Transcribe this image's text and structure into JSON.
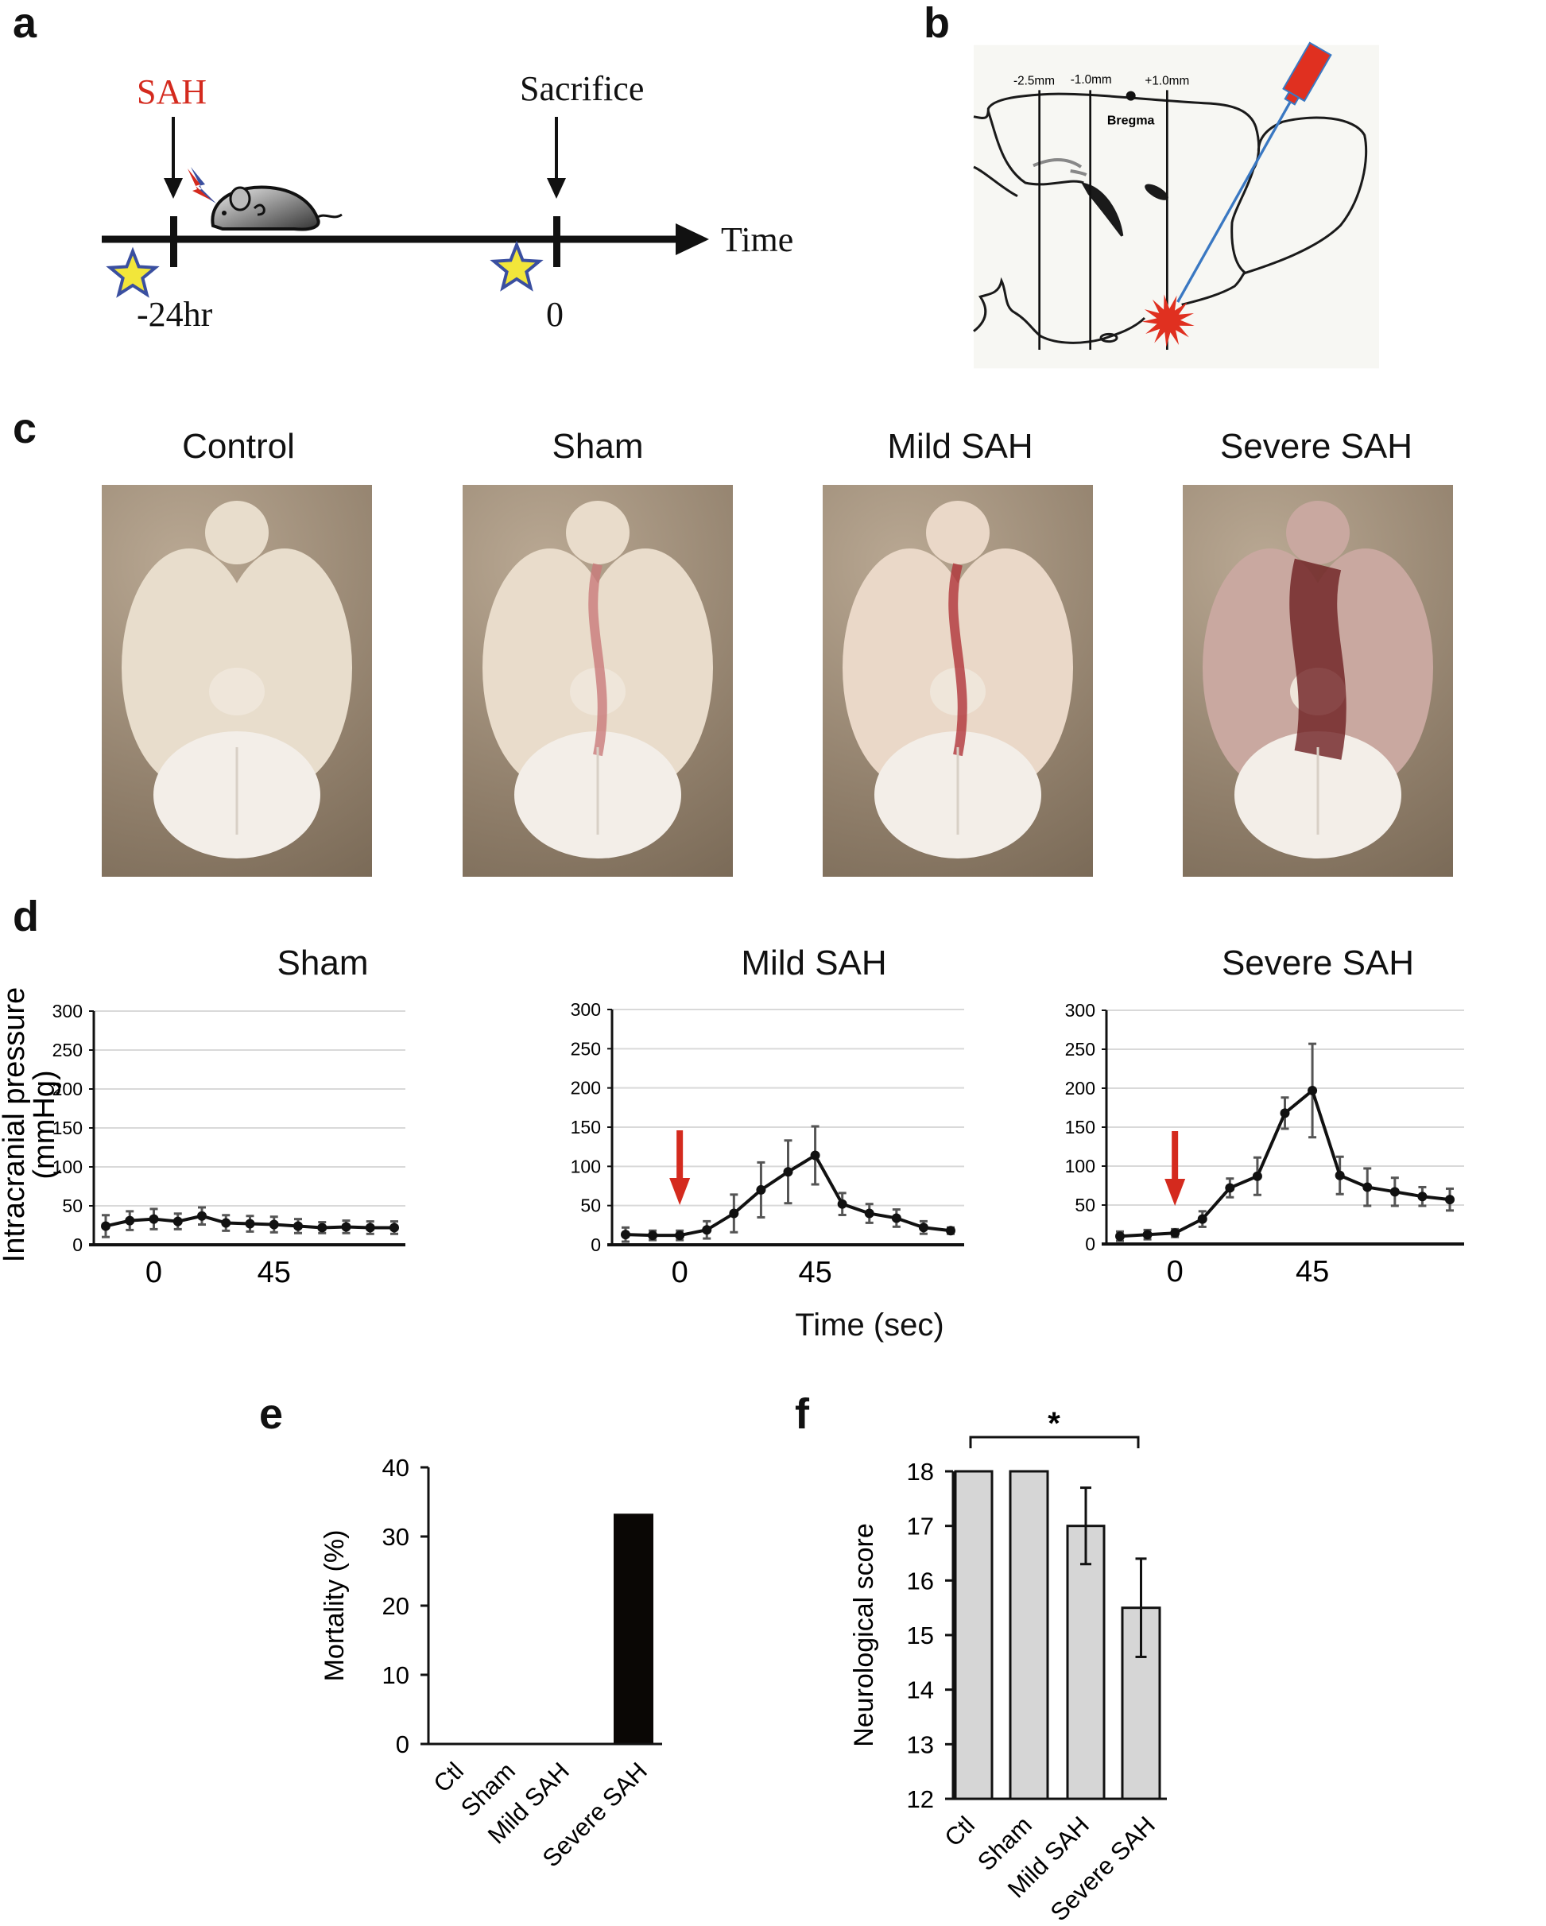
{
  "panels": {
    "a": "a",
    "b": "b",
    "c": "c",
    "d": "d",
    "e": "e",
    "f": "f"
  },
  "timeline": {
    "event_sah": "SAH",
    "event_sacrifice": "Sacrifice",
    "axis_label": "Time",
    "tick_start": "-24hr",
    "tick_end": "0",
    "sah_color": "#d42a1e",
    "star_color": "#f2e63a",
    "star_outline": "#3a4fa0"
  },
  "surgery_diagram": {
    "coords": [
      "-2.5mm",
      "-1.0mm",
      "+1.0mm"
    ],
    "landmark": "Bregma",
    "needle_color": "#3a78c2",
    "hemorrhage_color": "#e03020"
  },
  "photos": [
    {
      "title": "Control",
      "tissue_color": "#e8ddcc",
      "blood_color": "#e8ddcc"
    },
    {
      "title": "Sham",
      "tissue_color": "#e9dccb",
      "blood_color": "#c97a7a"
    },
    {
      "title": "Mild SAH",
      "tissue_color": "#ead8c8",
      "blood_color": "#b0343a"
    },
    {
      "title": "Severe SAH",
      "tissue_color": "#c9a8a0",
      "blood_color": "#6e1f22"
    }
  ],
  "chart_data": [
    {
      "type": "line",
      "title": "Sham",
      "xlabel": "Time (sec)",
      "ylabel": "Intracranial pressure (mmHg)",
      "ylim": [
        0,
        300
      ],
      "yticks": [
        "0",
        "50",
        "100",
        "150",
        "200",
        "250",
        "300"
      ],
      "xticks": [
        {
          "value": 0,
          "label": "0"
        },
        {
          "value": 45,
          "label": "45"
        }
      ],
      "x": [
        -18,
        -9,
        0,
        9,
        18,
        27,
        36,
        45,
        54,
        63,
        72,
        81,
        90
      ],
      "values": [
        24,
        31,
        33,
        30,
        37,
        28,
        27,
        26,
        24,
        22,
        23,
        22,
        22
      ],
      "errors": [
        14,
        12,
        13,
        10,
        11,
        10,
        10,
        10,
        9,
        7,
        8,
        8,
        8
      ],
      "injection_marker": null,
      "grid": true
    },
    {
      "type": "line",
      "title": "Mild SAH",
      "xlabel": "Time (sec)",
      "ylabel": "Intracranial pressure (mmHg)",
      "ylim": [
        0,
        300
      ],
      "yticks": [
        "0",
        "50",
        "100",
        "150",
        "200",
        "250",
        "300"
      ],
      "xticks": [
        {
          "value": 0,
          "label": "0"
        },
        {
          "value": 45,
          "label": "45"
        }
      ],
      "x": [
        -18,
        -9,
        0,
        9,
        18,
        27,
        36,
        45,
        54,
        63,
        72,
        81,
        90
      ],
      "values": [
        13,
        12,
        12,
        19,
        40,
        70,
        93,
        114,
        52,
        40,
        34,
        22,
        18
      ],
      "errors": [
        9,
        6,
        6,
        11,
        24,
        35,
        40,
        37,
        14,
        12,
        11,
        8,
        4
      ],
      "injection_marker": 0,
      "grid": true
    },
    {
      "type": "line",
      "title": "Severe SAH",
      "xlabel": "Time (sec)",
      "ylabel": "Intracranial pressure (mmHg)",
      "ylim": [
        0,
        300
      ],
      "yticks": [
        "0",
        "50",
        "100",
        "150",
        "200",
        "250",
        "300"
      ],
      "xticks": [
        {
          "value": 0,
          "label": "0"
        },
        {
          "value": 45,
          "label": "45"
        }
      ],
      "x": [
        -18,
        -9,
        0,
        9,
        18,
        27,
        36,
        45,
        54,
        63,
        72,
        81,
        90
      ],
      "values": [
        10,
        12,
        14,
        32,
        72,
        87,
        168,
        197,
        88,
        73,
        67,
        61,
        57
      ],
      "errors": [
        6,
        6,
        5,
        10,
        12,
        24,
        20,
        60,
        24,
        24,
        18,
        12,
        14
      ],
      "injection_marker": 0,
      "grid": true
    },
    {
      "type": "bar",
      "title": "",
      "ylabel": "Mortality (%)",
      "categories": [
        "Ctl",
        "Sham",
        "Mild SAH",
        "Severe SAH"
      ],
      "values": [
        0,
        0,
        0,
        33.3
      ],
      "ylim": [
        0,
        40
      ],
      "yticks": [
        "0",
        "10",
        "20",
        "30",
        "40"
      ],
      "bar_color": "#0a0705"
    },
    {
      "type": "bar",
      "title": "",
      "ylabel": "Neurological score",
      "categories": [
        "Ctl",
        "Sham",
        "Mild SAH",
        "Severe SAH"
      ],
      "values": [
        18,
        18,
        17,
        15.5
      ],
      "errors": [
        0,
        0,
        0.7,
        0.9
      ],
      "ylim": [
        12,
        18
      ],
      "yticks": [
        "12",
        "13",
        "14",
        "15",
        "16",
        "17",
        "18"
      ],
      "bar_color": "#d6d6d6",
      "significance": {
        "between": [
          "Ctl",
          "Severe SAH"
        ],
        "label": "*"
      }
    }
  ],
  "shared": {
    "time_axis_label": "Time (sec)",
    "icp_ylabel_line1": "Intracranial pressure",
    "icp_ylabel_line2": "(mmHg)",
    "arrow_color": "#d42a1e"
  }
}
